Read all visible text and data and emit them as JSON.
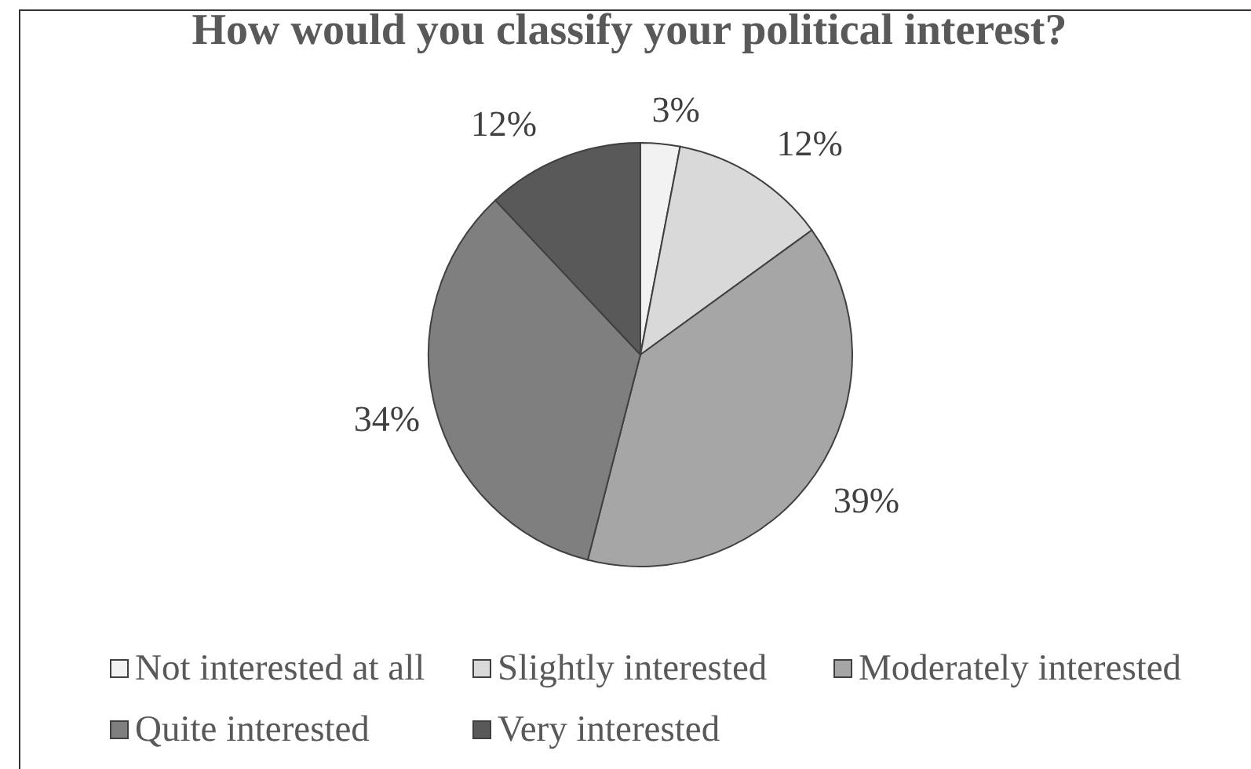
{
  "chart_data": {
    "type": "pie",
    "title": "How would you classify your political interest?",
    "categories": [
      "Not interested at all",
      "Slightly interested",
      "Moderately interested",
      "Quite interested",
      "Very interested"
    ],
    "values": [
      3,
      12,
      39,
      34,
      12
    ],
    "colors": [
      "#f2f2f2",
      "#d9d9d9",
      "#a6a6a6",
      "#7f7f7f",
      "#595959"
    ],
    "value_labels": [
      "3%",
      "12%",
      "39%",
      "34%",
      "12%"
    ],
    "legend": "bottom"
  }
}
